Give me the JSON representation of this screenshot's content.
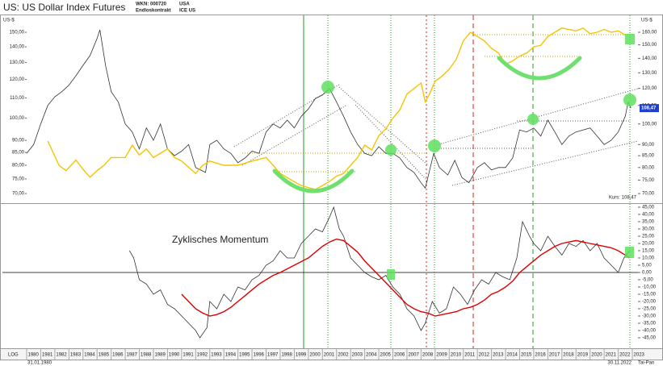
{
  "header": {
    "title": "US: US Dollar Index Futures",
    "wkn": "WKN: 000720",
    "contract": "Endloskontrakt",
    "country": "USA",
    "exchange": "ICE US"
  },
  "chart_data": [
    {
      "type": "line",
      "log_scale": true,
      "y_label": "US-$",
      "y2_label": "US-$",
      "xlim": [
        1980,
        2023.4
      ],
      "ylim": [
        67.2,
        173.8
      ],
      "yticks": [
        {
          "value": 160,
          "label": "160,00"
        },
        {
          "value": 150,
          "label": "150,00"
        },
        {
          "value": 140,
          "label": "140,00"
        },
        {
          "value": 130,
          "label": "130,00"
        },
        {
          "value": 120,
          "label": "120,00"
        },
        {
          "value": 110,
          "label": "110,00"
        },
        {
          "value": 100,
          "label": "100,00"
        },
        {
          "value": 90,
          "label": "90,00"
        },
        {
          "value": 85,
          "label": "85,00"
        },
        {
          "value": 80,
          "label": "80,00"
        },
        {
          "value": 75,
          "label": "75,00"
        },
        {
          "value": 70,
          "label": "70,00"
        }
      ],
      "y2lim": [
        67.4,
        161.9
      ],
      "y2ticks": [
        {
          "value": 150,
          "label": "150,00"
        },
        {
          "value": 140,
          "label": "140,00"
        },
        {
          "value": 130,
          "label": "130,00"
        },
        {
          "value": 120,
          "label": "120,00"
        },
        {
          "value": 110,
          "label": "110,00"
        },
        {
          "value": 100,
          "label": "100,00"
        },
        {
          "value": 90,
          "label": "90,00"
        },
        {
          "value": 85,
          "label": "85,00"
        },
        {
          "value": 80,
          "label": "80,00"
        },
        {
          "value": 75,
          "label": "75,00"
        },
        {
          "value": 70,
          "label": "70,00"
        }
      ],
      "last_label": "108,47",
      "kurs_label": "Kurs: 108,47",
      "series": [
        {
          "color": "#333333",
          "x": [
            1980,
            1980.5,
            1981,
            1981.5,
            1982,
            1982.5,
            1983,
            1983.5,
            1984,
            1984.5,
            1985,
            1985.2,
            1985.6,
            1986,
            1986.5,
            1987,
            1987.5,
            1988,
            1988.5,
            1989,
            1989.5,
            1990,
            1990.5,
            1991,
            1991.5,
            1992,
            1992.7,
            1993,
            1993.5,
            1994,
            1994.5,
            1995,
            1995.5,
            1996,
            1996.5,
            1997,
            1997.5,
            1998,
            1998.5,
            1999,
            1999.5,
            2000,
            2000.5,
            2001,
            2001.5,
            2002,
            2002.5,
            2003,
            2003.5,
            2004,
            2004.5,
            2005,
            2005.5,
            2006,
            2006.5,
            2007,
            2007.5,
            2008,
            2008.3,
            2008.9,
            2009.3,
            2009.9,
            2010.4,
            2010.9,
            2011.4,
            2012,
            2012.5,
            2013,
            2013.5,
            2014,
            2014.5,
            2015,
            2015.5,
            2016,
            2016.5,
            2017,
            2017.5,
            2018,
            2018.5,
            2019,
            2019.5,
            2020,
            2020.5,
            2021,
            2021.5,
            2022,
            2022.5,
            2022.7,
            2022.9
          ],
          "values": [
            86,
            90,
            100,
            110,
            115,
            118,
            122,
            128,
            135,
            142,
            155,
            162,
            135,
            118,
            112,
            100,
            96,
            88,
            98,
            92,
            100,
            88,
            85,
            87,
            90,
            80,
            78,
            90,
            92,
            88,
            86,
            82,
            84,
            87,
            86,
            96,
            100,
            98,
            102,
            98,
            104,
            108,
            114,
            116,
            120,
            112,
            104,
            96,
            90,
            86,
            85,
            89,
            86,
            86,
            84,
            80,
            78,
            74,
            72,
            86,
            80,
            77,
            83,
            76,
            74,
            80,
            82,
            79,
            80,
            80,
            84,
            97,
            96,
            98,
            94,
            102,
            96,
            90,
            94,
            96,
            97,
            98,
            94,
            90,
            92,
            96,
            104,
            112,
            108.47
          ]
        },
        {
          "color": "#f5c400",
          "axis": "y2",
          "x": [
            1981.5,
            1982.3,
            1982.8,
            1983.5,
            1984,
            1984.5,
            1985,
            1985.5,
            1986,
            1987,
            1987.5,
            1988,
            1988.5,
            1989,
            1990,
            1990.5,
            1991,
            1992,
            1992.5,
            1993,
            1994,
            1995,
            1996,
            1997,
            1997.5,
            1998,
            1999,
            1999.5,
            2000,
            2000.5,
            2001,
            2001.5,
            2002,
            2002.5,
            2003,
            2003.5,
            2004,
            2004.5,
            2005,
            2005.5,
            2006,
            2006.5,
            2007,
            2007.5,
            2008,
            2008.3,
            2008.6,
            2009,
            2009.5,
            2010,
            2010.5,
            2011,
            2011.5,
            2012,
            2012.5,
            2013,
            2013.5,
            2014,
            2014.5,
            2015,
            2015.5,
            2016,
            2016.5,
            2017,
            2017.5,
            2018,
            2018.5,
            2019,
            2019.5,
            2020,
            2020.5,
            2021,
            2021.5,
            2022,
            2022.5
          ],
          "values": [
            89.7,
            80,
            78,
            82,
            78.5,
            75.6,
            78,
            80,
            83,
            83,
            88,
            84,
            86.4,
            83,
            86.4,
            83,
            81.6,
            77,
            80,
            81.6,
            80,
            80,
            81.6,
            83,
            80,
            77,
            74,
            72.7,
            72,
            71.4,
            72.7,
            74.1,
            76,
            77,
            80,
            83,
            88,
            86,
            92,
            95,
            100,
            104,
            112,
            115,
            118,
            108,
            112,
            119,
            122,
            126,
            132,
            144,
            150,
            147,
            144,
            139,
            136,
            129,
            131,
            134,
            136,
            140,
            141,
            147,
            150,
            153,
            152,
            151,
            153,
            149,
            150,
            152,
            150,
            151,
            148
          ]
        }
      ]
    },
    {
      "type": "line",
      "annotation": "Zyklisches Momentum",
      "xlim": [
        1980,
        2023.4
      ],
      "ylim": [
        -50,
        47.2
      ],
      "yticks": [
        {
          "value": 45,
          "label": "45,00"
        },
        {
          "value": 40,
          "label": "40,00"
        },
        {
          "value": 35,
          "label": "35,00"
        },
        {
          "value": 30,
          "label": "30,00"
        },
        {
          "value": 25,
          "label": "25,00"
        },
        {
          "value": 20,
          "label": "20,00"
        },
        {
          "value": 15,
          "label": "15,00"
        },
        {
          "value": 10,
          "label": "10,00"
        },
        {
          "value": 5,
          "label": "5,00"
        },
        {
          "value": 0,
          "label": "0,00"
        },
        {
          "value": -5,
          "label": "-5,00"
        },
        {
          "value": -10,
          "label": "-10,00"
        },
        {
          "value": -15,
          "label": "-15,00"
        },
        {
          "value": -20,
          "label": "-20,00"
        },
        {
          "value": -25,
          "label": "-25,00"
        },
        {
          "value": -30,
          "label": "-30,00"
        },
        {
          "value": -35,
          "label": "-35,00"
        },
        {
          "value": -40,
          "label": "-40,00"
        },
        {
          "value": -45,
          "label": "-45,00"
        }
      ],
      "xticks": [
        1980,
        1981,
        1982,
        1983,
        1984,
        1985,
        1986,
        1987,
        1988,
        1989,
        1990,
        1991,
        1992,
        1993,
        1994,
        1995,
        1996,
        1997,
        1998,
        1999,
        2000,
        2001,
        2002,
        2003,
        2004,
        2005,
        2006,
        2007,
        2008,
        2009,
        2010,
        2011,
        2012,
        2013,
        2014,
        2015,
        2016,
        2017,
        2018,
        2019,
        2020,
        2021,
        2022,
        2023
      ],
      "series": [
        {
          "color": "#333333",
          "x": [
            1987.3,
            1987.6,
            1988,
            1988.5,
            1989,
            1989.5,
            1990,
            1990.5,
            1991,
            1991.5,
            1992,
            1992.3,
            1992.8,
            1993,
            1993.5,
            1994,
            1994.5,
            1995,
            1995.5,
            1996,
            1996.5,
            1997,
            1997.5,
            1998,
            1998.5,
            1999,
            1999.5,
            2000,
            2000.5,
            2001,
            2001.5,
            2001.8,
            2002.2,
            2002.5,
            2003,
            2003.5,
            2004,
            2004.5,
            2005,
            2005.5,
            2006,
            2006.5,
            2007,
            2007.5,
            2008,
            2008.3,
            2008.8,
            2009.3,
            2009.8,
            2010.3,
            2010.8,
            2011.3,
            2011.8,
            2012.3,
            2012.8,
            2013.3,
            2013.8,
            2014.3,
            2014.8,
            2015.2,
            2015.7,
            2016,
            2016.5,
            2017,
            2017.5,
            2018,
            2018.5,
            2019,
            2019.5,
            2020,
            2020.5,
            2021,
            2021.5,
            2022,
            2022.4,
            2022.8
          ],
          "values": [
            15,
            10,
            -5,
            -8,
            -15,
            -12,
            -22,
            -25,
            -30,
            -35,
            -40,
            -45,
            -38,
            -20,
            -25,
            -15,
            -20,
            -10,
            -12,
            -5,
            -2,
            5,
            8,
            15,
            10,
            10,
            20,
            25,
            30,
            28,
            38,
            45,
            30,
            25,
            10,
            5,
            0,
            -3,
            -5,
            -2,
            -10,
            -15,
            -25,
            -30,
            -40,
            -35,
            -20,
            -28,
            -25,
            -10,
            -15,
            -22,
            -12,
            -5,
            -8,
            0,
            -3,
            -5,
            10,
            35,
            25,
            20,
            15,
            25,
            18,
            12,
            20,
            18,
            22,
            15,
            20,
            10,
            5,
            0,
            10,
            15
          ]
        },
        {
          "color": "#dd0000",
          "x": [
            1991,
            1991.5,
            1992,
            1992.5,
            1993,
            1993.5,
            1994,
            1994.5,
            1995,
            1995.5,
            1996,
            1996.5,
            1997,
            1997.5,
            1998,
            1999,
            2000,
            2001,
            2001.5,
            2002,
            2002.5,
            2003,
            2003.5,
            2004,
            2004.5,
            2005,
            2005.5,
            2006,
            2006.5,
            2007,
            2007.5,
            2008,
            2008.5,
            2009,
            2009.5,
            2010,
            2010.5,
            2011,
            2011.5,
            2012,
            2012.5,
            2013,
            2013.5,
            2014,
            2014.5,
            2015,
            2015.5,
            2016,
            2016.5,
            2017,
            2017.5,
            2018,
            2018.5,
            2019,
            2019.5,
            2020,
            2020.5,
            2021,
            2021.5,
            2022,
            2022.5,
            2022.8
          ],
          "values": [
            -15,
            -20,
            -25,
            -28,
            -30,
            -29,
            -27,
            -24,
            -20,
            -16,
            -12,
            -8,
            -5,
            -2,
            0,
            5,
            10,
            18,
            21,
            23,
            22,
            18,
            14,
            8,
            3,
            -2,
            -7,
            -12,
            -17,
            -22,
            -25,
            -27,
            -28,
            -30,
            -29,
            -28,
            -27,
            -25,
            -24,
            -22,
            -19,
            -15,
            -13,
            -10,
            -6,
            0,
            4,
            8,
            12,
            15,
            18,
            20,
            21,
            22,
            21,
            20,
            19,
            18,
            17,
            15,
            12,
            10
          ]
        }
      ]
    }
  ],
  "footer": {
    "scale": "LOG",
    "start": "31.01.1980",
    "end": "30.11.2022",
    "brand": "Tai-Pan"
  }
}
